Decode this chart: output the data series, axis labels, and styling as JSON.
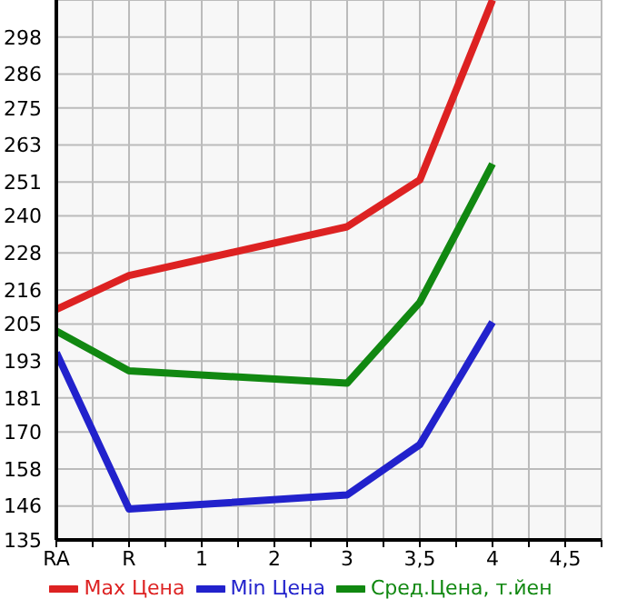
{
  "chart_data": {
    "type": "line",
    "categories": [
      "RA",
      "R",
      "1",
      "2",
      "3",
      "3,5",
      "4",
      "4,5"
    ],
    "series": [
      {
        "name": "Max Цена",
        "color": "#dd2222",
        "values": [
          209.7,
          220.7,
          null,
          null,
          236.5,
          251.7,
          310,
          null
        ]
      },
      {
        "name": "Min Цена",
        "color": "#2222cc",
        "values": [
          195.7,
          145,
          null,
          null,
          149.6,
          165.9,
          205.6,
          null
        ]
      },
      {
        "name": "Сред.Цена, т.йен",
        "color": "#118811",
        "values": [
          202.7,
          189.8,
          null,
          null,
          185.8,
          212,
          256.9,
          null
        ]
      }
    ],
    "ylim": [
      135,
      310
    ],
    "yticks": [
      135,
      146,
      158,
      170,
      181,
      193,
      205,
      216,
      228,
      240,
      251,
      263,
      275,
      286,
      298
    ],
    "grid": true,
    "legend": "bottom",
    "marker": "none",
    "line_style": "solid"
  }
}
